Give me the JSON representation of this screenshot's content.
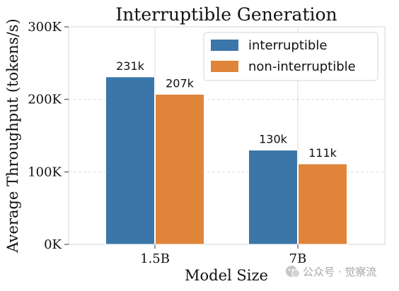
{
  "chart_data": {
    "type": "bar",
    "title": "Interruptible Generation",
    "xlabel": "Model Size",
    "ylabel": "Average Throughput (tokens/s)",
    "categories": [
      "1.5B",
      "7B"
    ],
    "ylim": [
      0,
      300000
    ],
    "yticks": [
      0,
      100000,
      200000,
      300000
    ],
    "ytick_labels": [
      "0K",
      "100K",
      "200K",
      "300K"
    ],
    "grid": true,
    "legend_position": "top-right",
    "series": [
      {
        "name": "interruptible",
        "color": "#3b76a8",
        "values": [
          231000,
          130000
        ],
        "labels": [
          "231k",
          "130k"
        ]
      },
      {
        "name": "non-interruptible",
        "color": "#e0843a",
        "values": [
          207000,
          111000
        ],
        "labels": [
          "207k",
          "111k"
        ]
      }
    ]
  },
  "watermark": "公众号 · 觉察流"
}
